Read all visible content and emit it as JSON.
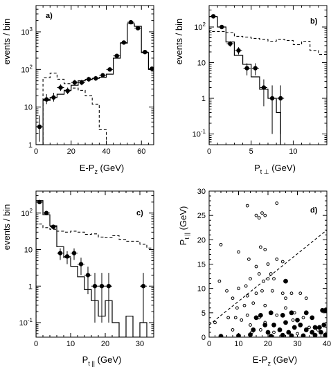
{
  "chart_data": [
    {
      "id": "a",
      "type": "histogram",
      "panel_label": "a)",
      "xlabel": "E-P",
      "xlabel_sub": "z",
      "xlabel_unit": "(GeV)",
      "ylabel": "events / bin",
      "yscale": "log",
      "xlim": [
        0,
        67
      ],
      "ylim": [
        1,
        5000
      ],
      "xticks": [
        0,
        20,
        40,
        60
      ],
      "xtick_labels": [
        "0",
        "20",
        "40",
        "60"
      ],
      "yticks": [
        1,
        10,
        100,
        1000
      ],
      "ytick_labels": [
        {
          "base": "1",
          "exp": ""
        },
        {
          "base": "10",
          "exp": ""
        },
        {
          "base": "10",
          "exp": "2"
        },
        {
          "base": "10",
          "exp": "3"
        }
      ],
      "solid_hist": {
        "edges": [
          0,
          4,
          8,
          12,
          16,
          20,
          24,
          28,
          32,
          36,
          40,
          44,
          48,
          52,
          56,
          60,
          64,
          67
        ],
        "values": [
          0.9,
          15,
          18,
          22,
          28,
          38,
          50,
          54,
          58,
          62,
          75,
          200,
          500,
          1650,
          1400,
          280,
          100
        ]
      },
      "dashed_hist": {
        "edges": [
          4,
          8,
          12,
          16,
          20,
          24,
          28,
          32,
          36,
          40
        ],
        "values": [
          60,
          80,
          55,
          42,
          32,
          28,
          20,
          12,
          2.5
        ]
      },
      "points": [
        {
          "x": 2,
          "y": 3,
          "ylo": 1.2,
          "yhi": 6
        },
        {
          "x": 6,
          "y": 16,
          "ylo": 12,
          "yhi": 22
        },
        {
          "x": 10,
          "y": 18,
          "ylo": 14,
          "yhi": 24
        },
        {
          "x": 14,
          "y": 33,
          "ylo": 27,
          "yhi": 40
        },
        {
          "x": 18,
          "y": 27,
          "ylo": 22,
          "yhi": 33
        },
        {
          "x": 22,
          "y": 45,
          "ylo": 38,
          "yhi": 53
        },
        {
          "x": 26,
          "y": 45,
          "ylo": 38,
          "yhi": 53
        },
        {
          "x": 30,
          "y": 55,
          "ylo": 47,
          "yhi": 64
        },
        {
          "x": 34,
          "y": 58,
          "ylo": 50,
          "yhi": 67
        },
        {
          "x": 38,
          "y": 70,
          "ylo": 61,
          "yhi": 80
        },
        {
          "x": 42,
          "y": 100,
          "ylo": 90,
          "yhi": 112
        },
        {
          "x": 46,
          "y": 230,
          "ylo": 214,
          "yhi": 246
        },
        {
          "x": 50,
          "y": 520,
          "ylo": 497,
          "yhi": 543
        },
        {
          "x": 54,
          "y": 1800,
          "ylo": 1758,
          "yhi": 1842
        },
        {
          "x": 58,
          "y": 1250,
          "ylo": 1215,
          "yhi": 1285
        },
        {
          "x": 62,
          "y": 290,
          "ylo": 273,
          "yhi": 307
        },
        {
          "x": 66,
          "y": 105,
          "ylo": 95,
          "yhi": 115
        }
      ]
    },
    {
      "id": "b",
      "type": "histogram",
      "panel_label": "b)",
      "xlabel": "P",
      "xlabel_sub": "t ⊥",
      "xlabel_unit": "(GeV)",
      "ylabel": "events / bin",
      "yscale": "log",
      "xlim": [
        0,
        14
      ],
      "ylim": [
        0.05,
        400
      ],
      "xticks": [
        0,
        5,
        10
      ],
      "xtick_labels": [
        "0",
        "5",
        "10"
      ],
      "yticks": [
        0.1,
        1,
        10,
        100
      ],
      "ytick_labels": [
        {
          "base": "10",
          "exp": "-1"
        },
        {
          "base": "1",
          "exp": ""
        },
        {
          "base": "10",
          "exp": ""
        },
        {
          "base": "10",
          "exp": "2"
        }
      ],
      "solid_hist": {
        "edges": [
          0,
          1,
          2,
          3,
          4,
          5,
          6,
          7,
          7.5,
          8,
          8.5
        ],
        "values": [
          195,
          100,
          38,
          16,
          9,
          4,
          1.8,
          1,
          1,
          0.4
        ]
      },
      "dashed_hist": {
        "edges": [
          0,
          1,
          2,
          3,
          4,
          5,
          6,
          7,
          8,
          9,
          10,
          11,
          12,
          13,
          14
        ],
        "values": [
          75,
          75,
          70,
          55,
          52,
          48,
          45,
          40,
          45,
          42,
          32,
          40,
          22,
          17
        ]
      },
      "points": [
        {
          "x": 0.5,
          "y": 200,
          "ylo": 186,
          "yhi": 214
        },
        {
          "x": 1.5,
          "y": 100,
          "ylo": 90,
          "yhi": 110
        },
        {
          "x": 2.5,
          "y": 34,
          "ylo": 28,
          "yhi": 40
        },
        {
          "x": 3.5,
          "y": 22,
          "ylo": 17,
          "yhi": 27
        },
        {
          "x": 4.5,
          "y": 7,
          "ylo": 4.4,
          "yhi": 9.6
        },
        {
          "x": 5.5,
          "y": 7,
          "ylo": 4.4,
          "yhi": 9.6
        },
        {
          "x": 6.5,
          "y": 2,
          "ylo": 0.6,
          "yhi": 3.4
        },
        {
          "x": 7.5,
          "y": 1,
          "ylo": 0.1,
          "yhi": 2.3
        },
        {
          "x": 8.5,
          "y": 1,
          "ylo": 0.1,
          "yhi": 2.3
        }
      ]
    },
    {
      "id": "c",
      "type": "histogram",
      "panel_label": "c)",
      "xlabel": "P",
      "xlabel_sub": "t ||",
      "xlabel_unit": "(GeV)",
      "ylabel": "events / bin",
      "yscale": "log",
      "xlim": [
        0,
        34
      ],
      "ylim": [
        0.04,
        400
      ],
      "xticks": [
        0,
        10,
        20,
        30
      ],
      "xtick_labels": [
        "0",
        "10",
        "20",
        "30"
      ],
      "yticks": [
        0.1,
        1,
        10,
        100
      ],
      "ytick_labels": [
        {
          "base": "10",
          "exp": "-1"
        },
        {
          "base": "1",
          "exp": ""
        },
        {
          "base": "10",
          "exp": ""
        },
        {
          "base": "10",
          "exp": "2"
        }
      ],
      "solid_hist": {
        "edges": [
          0,
          2,
          4,
          6,
          8,
          10,
          12,
          14,
          16,
          18,
          20,
          22,
          24,
          26,
          28,
          30,
          32
        ],
        "values": [
          220,
          90,
          45,
          12,
          6,
          3.5,
          1.8,
          0.8,
          0.4,
          0.15,
          0.4,
          0.1,
          0.04,
          0.15,
          0.04,
          0.1
        ]
      },
      "dashed_hist": {
        "edges": [
          0,
          2,
          4,
          6,
          8,
          10,
          12,
          14,
          16,
          18,
          20,
          22,
          24,
          26,
          28,
          30,
          32,
          34
        ],
        "values": [
          50,
          40,
          36,
          32,
          30,
          32,
          30,
          26,
          27,
          22,
          21,
          24,
          19,
          17,
          17,
          14,
          11
        ]
      },
      "points": [
        {
          "x": 1,
          "y": 200,
          "ylo": 186,
          "yhi": 214
        },
        {
          "x": 3,
          "y": 100,
          "ylo": 90,
          "yhi": 110
        },
        {
          "x": 5,
          "y": 42,
          "ylo": 36,
          "yhi": 48
        },
        {
          "x": 7,
          "y": 8,
          "ylo": 5.2,
          "yhi": 10.8
        },
        {
          "x": 9,
          "y": 6.5,
          "ylo": 4,
          "yhi": 9
        },
        {
          "x": 11,
          "y": 8,
          "ylo": 5.2,
          "yhi": 10.8
        },
        {
          "x": 13,
          "y": 4,
          "ylo": 2,
          "yhi": 6
        },
        {
          "x": 15,
          "y": 2,
          "ylo": 0.6,
          "yhi": 3.4
        },
        {
          "x": 17,
          "y": 1,
          "ylo": 0.1,
          "yhi": 2.3
        },
        {
          "x": 19,
          "y": 1,
          "ylo": 0.1,
          "yhi": 2.3
        },
        {
          "x": 21,
          "y": 1,
          "ylo": 0.1,
          "yhi": 2.3
        },
        {
          "x": 31,
          "y": 1,
          "ylo": 0.1,
          "yhi": 2.3
        }
      ]
    },
    {
      "id": "d",
      "type": "scatter",
      "panel_label": "d)",
      "xlabel": "E-P",
      "xlabel_sub": "z",
      "xlabel_unit": "(GeV)",
      "ylabel": "P",
      "ylabel_sub": "t ||",
      "ylabel_unit": "(GeV)",
      "xlim": [
        0,
        40
      ],
      "ylim": [
        0,
        30
      ],
      "xticks": [
        0,
        10,
        20,
        30,
        40
      ],
      "xtick_labels": [
        "0",
        "10",
        "20",
        "30",
        "40"
      ],
      "yticks": [
        0,
        5,
        10,
        15,
        20,
        25,
        30
      ],
      "ytick_labels": [
        "0",
        "5",
        "10",
        "15",
        "20",
        "25",
        "30"
      ],
      "cut_line": {
        "x": [
          0,
          40
        ],
        "y": [
          2.5,
          22
        ]
      },
      "open_points": [
        {
          "x": 13,
          "y": 27
        },
        {
          "x": 16,
          "y": 25
        },
        {
          "x": 17,
          "y": 24.5
        },
        {
          "x": 18,
          "y": 25.5
        },
        {
          "x": 19,
          "y": 25
        },
        {
          "x": 23,
          "y": 27.5
        },
        {
          "x": 4,
          "y": 19
        },
        {
          "x": 10,
          "y": 17.5
        },
        {
          "x": 13.5,
          "y": 16
        },
        {
          "x": 17.5,
          "y": 18.5
        },
        {
          "x": 16,
          "y": 14.5
        },
        {
          "x": 19,
          "y": 18
        },
        {
          "x": 20,
          "y": 15
        },
        {
          "x": 23,
          "y": 16
        },
        {
          "x": 20,
          "y": 12
        },
        {
          "x": 25,
          "y": 15.5
        },
        {
          "x": 3.5,
          "y": 11.5
        },
        {
          "x": 6,
          "y": 9.5
        },
        {
          "x": 10,
          "y": 10
        },
        {
          "x": 12.5,
          "y": 10.5
        },
        {
          "x": 14,
          "y": 12
        },
        {
          "x": 17,
          "y": 13
        },
        {
          "x": 21,
          "y": 13
        },
        {
          "x": 22,
          "y": 12
        },
        {
          "x": 18.5,
          "y": 11.5
        },
        {
          "x": 8,
          "y": 8
        },
        {
          "x": 13,
          "y": 8.5
        },
        {
          "x": 16,
          "y": 9
        },
        {
          "x": 18,
          "y": 9.5
        },
        {
          "x": 21.5,
          "y": 9.5
        },
        {
          "x": 9.5,
          "y": 6
        },
        {
          "x": 12,
          "y": 6.5
        },
        {
          "x": 15,
          "y": 7
        },
        {
          "x": 19,
          "y": 6.5
        },
        {
          "x": 25,
          "y": 9
        },
        {
          "x": 26,
          "y": 8
        },
        {
          "x": 28,
          "y": 9
        },
        {
          "x": 31,
          "y": 9
        },
        {
          "x": 33,
          "y": 8
        },
        {
          "x": 26,
          "y": 6
        },
        {
          "x": 2,
          "y": 3
        },
        {
          "x": 6.5,
          "y": 4
        },
        {
          "x": 9,
          "y": 4
        },
        {
          "x": 11,
          "y": 3.5
        },
        {
          "x": 13,
          "y": 4.5
        },
        {
          "x": 17,
          "y": 4
        },
        {
          "x": 19,
          "y": 3
        },
        {
          "x": 23,
          "y": 4.5
        },
        {
          "x": 28.5,
          "y": 3.5
        },
        {
          "x": 32,
          "y": 4
        },
        {
          "x": 34,
          "y": 2
        },
        {
          "x": 8,
          "y": 1.5
        },
        {
          "x": 14.5,
          "y": 1
        },
        {
          "x": 17.5,
          "y": 1.5
        },
        {
          "x": 22,
          "y": 1
        },
        {
          "x": 30,
          "y": 0.7
        },
        {
          "x": 37,
          "y": 1.5
        },
        {
          "x": 14,
          "y": 2.5
        },
        {
          "x": 29,
          "y": 5
        }
      ],
      "filled_points": [
        {
          "x": 26,
          "y": 11.5
        },
        {
          "x": 38.5,
          "y": 5.5
        },
        {
          "x": 39.5,
          "y": 5.5
        },
        {
          "x": 28,
          "y": 5
        },
        {
          "x": 16,
          "y": 4
        },
        {
          "x": 17.5,
          "y": 4.5
        },
        {
          "x": 21,
          "y": 5
        },
        {
          "x": 25,
          "y": 4.5
        },
        {
          "x": 33,
          "y": 5
        },
        {
          "x": 35,
          "y": 4
        },
        {
          "x": 30,
          "y": 3.5
        },
        {
          "x": 19,
          "y": 2.5
        },
        {
          "x": 22,
          "y": 2.5
        },
        {
          "x": 26,
          "y": 3
        },
        {
          "x": 29,
          "y": 2
        },
        {
          "x": 31,
          "y": 2.5
        },
        {
          "x": 36,
          "y": 2
        },
        {
          "x": 37.5,
          "y": 2
        },
        {
          "x": 39,
          "y": 2.5
        },
        {
          "x": 15,
          "y": 1.5
        },
        {
          "x": 20,
          "y": 1
        },
        {
          "x": 24,
          "y": 1.5
        },
        {
          "x": 33,
          "y": 1.5
        },
        {
          "x": 35,
          "y": 1
        },
        {
          "x": 38,
          "y": 1
        },
        {
          "x": 14,
          "y": 0.5
        },
        {
          "x": 21,
          "y": 0.2
        },
        {
          "x": 25,
          "y": 0.4
        },
        {
          "x": 28,
          "y": 0.3
        },
        {
          "x": 32,
          "y": 0.3
        },
        {
          "x": 36,
          "y": 0.4
        },
        {
          "x": 39.5,
          "y": 0.4
        },
        {
          "x": 4,
          "y": 0.2
        },
        {
          "x": 27,
          "y": 1
        },
        {
          "x": 10,
          "y": 0.3
        }
      ]
    }
  ]
}
